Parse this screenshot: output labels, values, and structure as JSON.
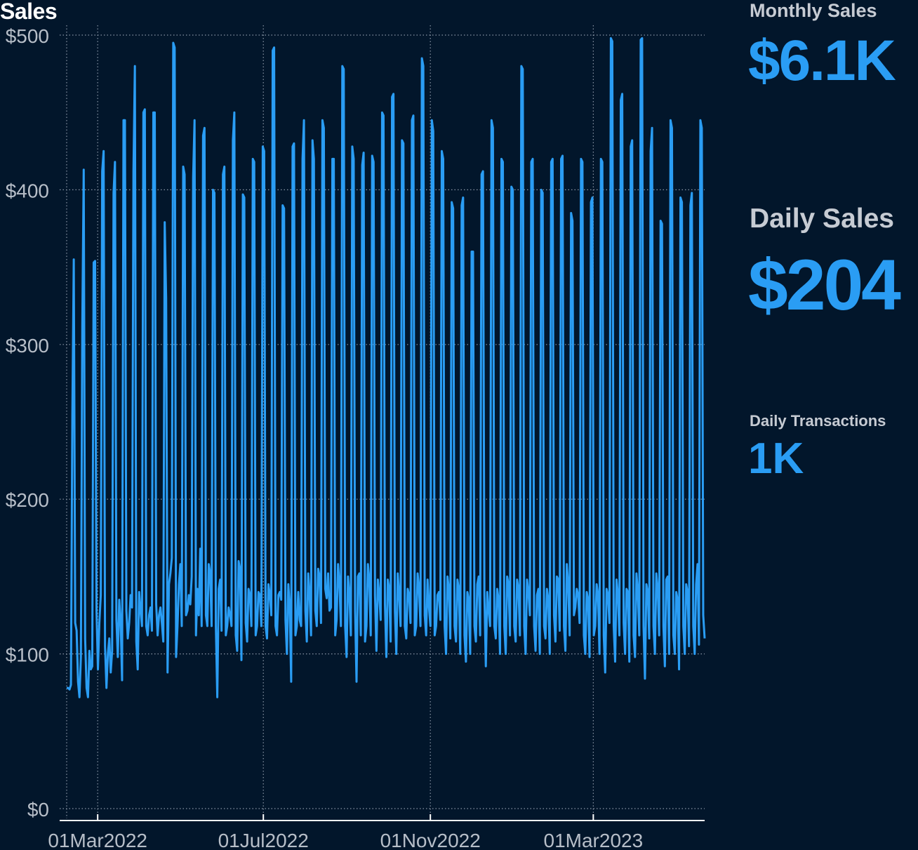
{
  "chart_data": {
    "type": "line",
    "title": "Sales",
    "xlabel": "",
    "ylabel": "",
    "x_range": [
      "2022-02-01",
      "2023-05-22"
    ],
    "ylim": [
      0,
      500
    ],
    "y_ticks": [
      {
        "value": 0,
        "label": "$0"
      },
      {
        "value": 100,
        "label": "$100"
      },
      {
        "value": 200,
        "label": "$200"
      },
      {
        "value": 300,
        "label": "$300"
      },
      {
        "value": 400,
        "label": "$400"
      },
      {
        "value": 500,
        "label": "$500"
      }
    ],
    "x_ticks": [
      {
        "date": "2022-03-01",
        "label": "01Mar2022"
      },
      {
        "date": "2022-07-01",
        "label": "01Jul2022"
      },
      {
        "date": "2022-11-01",
        "label": "01Nov2022"
      },
      {
        "date": "2023-03-01",
        "label": "01Mar2023"
      }
    ],
    "grid": true,
    "line_color": "#2a9df4",
    "series": [
      {
        "x_start": "2022-02-01",
        "x_step": "1 day",
        "values": [
          78,
          78,
          77,
          80,
          255,
          355,
          120,
          115,
          82,
          72,
          98,
          312,
          413,
          110,
          78,
          72,
          102,
          90,
          92,
          353,
          354,
          128,
          90,
          120,
          138,
          412,
          425,
          105,
          78,
          100,
          110,
          88,
          102,
          398,
          418,
          122,
          98,
          135,
          120,
          83,
          445,
          445,
          128,
          110,
          120,
          138,
          130,
          412,
          480,
          108,
          90,
          140,
          128,
          118,
          450,
          452,
          118,
          112,
          125,
          130,
          115,
          450,
          450,
          132,
          112,
          125,
          130,
          120,
          108,
          379,
          330,
          88,
          145,
          152,
          162,
          495,
          492,
          98,
          118,
          145,
          158,
          118,
          415,
          410,
          125,
          128,
          138,
          132,
          150,
          408,
          445,
          112,
          142,
          125,
          168,
          118,
          435,
          440,
          125,
          118,
          158,
          152,
          118,
          400,
          398,
          118,
          72,
          142,
          148,
          115,
          410,
          415,
          112,
          118,
          130,
          125,
          118,
          432,
          450,
          112,
          102,
          160,
          155,
          96,
          397,
          395,
          120,
          108,
          142,
          138,
          118,
          420,
          418,
          112,
          118,
          140,
          138,
          118,
          428,
          425,
          118,
          110,
          145,
          138,
          125,
          490,
          492,
          118,
          112,
          138,
          140,
          135,
          390,
          388,
          122,
          100,
          145,
          130,
          82,
          428,
          430,
          112,
          118,
          140,
          122,
          118,
          420,
          445,
          128,
          108,
          152,
          138,
          112,
          432,
          420,
          128,
          118,
          155,
          150,
          120,
          445,
          440,
          142,
          136,
          152,
          128,
          130,
          420,
          420,
          112,
          122,
          158,
          145,
          118,
          480,
          478,
          118,
          98,
          150,
          138,
          112,
          428,
          420,
          128,
          82,
          150,
          152,
          112,
          416,
          424,
          108,
          118,
          158,
          148,
          112,
          422,
          418,
          138,
          102,
          148,
          138,
          122,
          450,
          448,
          132,
          98,
          148,
          142,
          108,
          460,
          462,
          128,
          100,
          152,
          138,
          118,
          432,
          430,
          118,
          110,
          142,
          138,
          120,
          445,
          448,
          112,
          118,
          152,
          142,
          118,
          485,
          480,
          125,
          112,
          148,
          130,
          118,
          445,
          438,
          112,
          118,
          138,
          140,
          122,
          425,
          420,
          118,
          100,
          150,
          142,
          110,
          392,
          388,
          118,
          108,
          148,
          142,
          100,
          390,
          395,
          112,
          95,
          140,
          135,
          100,
          360,
          360,
          118,
          108,
          145,
          150,
          112,
          410,
          412,
          138,
          92,
          140,
          128,
          118,
          445,
          440,
          118,
          110,
          142,
          135,
          100,
          420,
          418,
          118,
          100,
          150,
          145,
          112,
          402,
          400,
          118,
          108,
          148,
          142,
          112,
          480,
          478,
          118,
          100,
          148,
          140,
          125,
          418,
          420,
          118,
          102,
          138,
          142,
          100,
          400,
          398,
          118,
          110,
          142,
          135,
          100,
          418,
          420,
          125,
          108,
          150,
          148,
          115,
          420,
          422,
          118,
          102,
          158,
          145,
          112,
          385,
          380,
          125,
          130,
          142,
          138,
          120,
          420,
          418,
          112,
          100,
          140,
          135,
          98,
          392,
          395,
          112,
          118,
          145,
          138,
          100,
          420,
          418,
          112,
          88,
          142,
          138,
          120,
          498,
          496,
          118,
          95,
          148,
          138,
          112,
          458,
          462,
          120,
          100,
          142,
          140,
          95,
          428,
          432,
          112,
          98,
          152,
          140,
          112,
          497,
          498,
          118,
          84,
          145,
          140,
          110,
          425,
          440,
          118,
          100,
          152,
          142,
          112,
          380,
          378,
          118,
          92,
          148,
          150,
          100,
          445,
          440,
          112,
          100,
          140,
          135,
          90,
          395,
          392,
          118,
          100,
          145,
          140,
          105,
          390,
          398,
          118,
          100,
          145,
          158,
          106,
          445,
          440,
          125,
          110
        ]
      }
    ]
  },
  "kpis": {
    "monthly_sales": {
      "label": "Monthly Sales",
      "value": "$6.1K"
    },
    "daily_sales": {
      "label": "Daily Sales",
      "value": "$204"
    },
    "daily_transactions": {
      "label": "Daily Transactions",
      "value": "1K"
    }
  }
}
